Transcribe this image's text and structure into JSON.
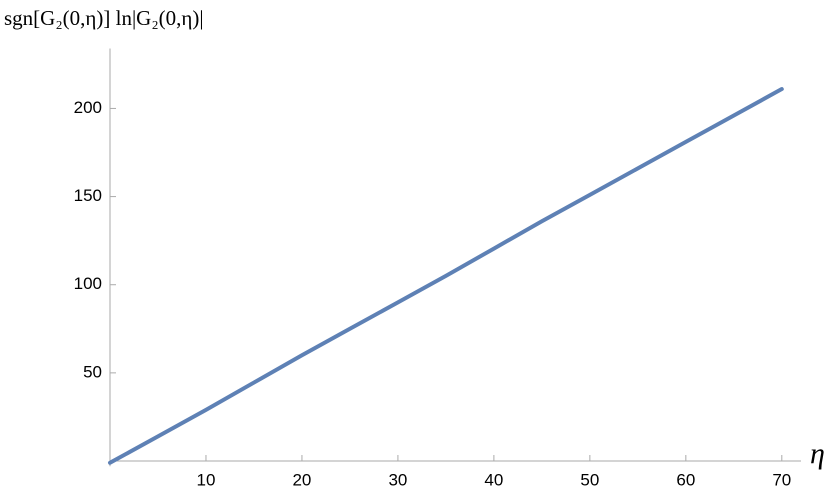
{
  "chart_data": {
    "type": "line",
    "y_label": "sgn[G₂(0,η)] ln|G₂(0,η)|",
    "x_label": "η",
    "x": [
      0,
      5,
      10,
      15,
      20,
      25,
      30,
      35,
      40,
      45,
      50,
      55,
      60,
      65,
      70
    ],
    "series": [
      {
        "color": "#5e81b5",
        "values": [
          -1,
          14,
          29,
          44.5,
          60,
          75,
          90,
          105,
          120.5,
          136,
          151,
          166,
          181,
          196,
          211
        ]
      }
    ],
    "xlim": [
      0,
      72
    ],
    "xticks": [
      10,
      20,
      30,
      40,
      50,
      60,
      70
    ],
    "ylim": [
      -3,
      234
    ],
    "yticks": [
      50,
      100,
      150,
      200
    ]
  }
}
